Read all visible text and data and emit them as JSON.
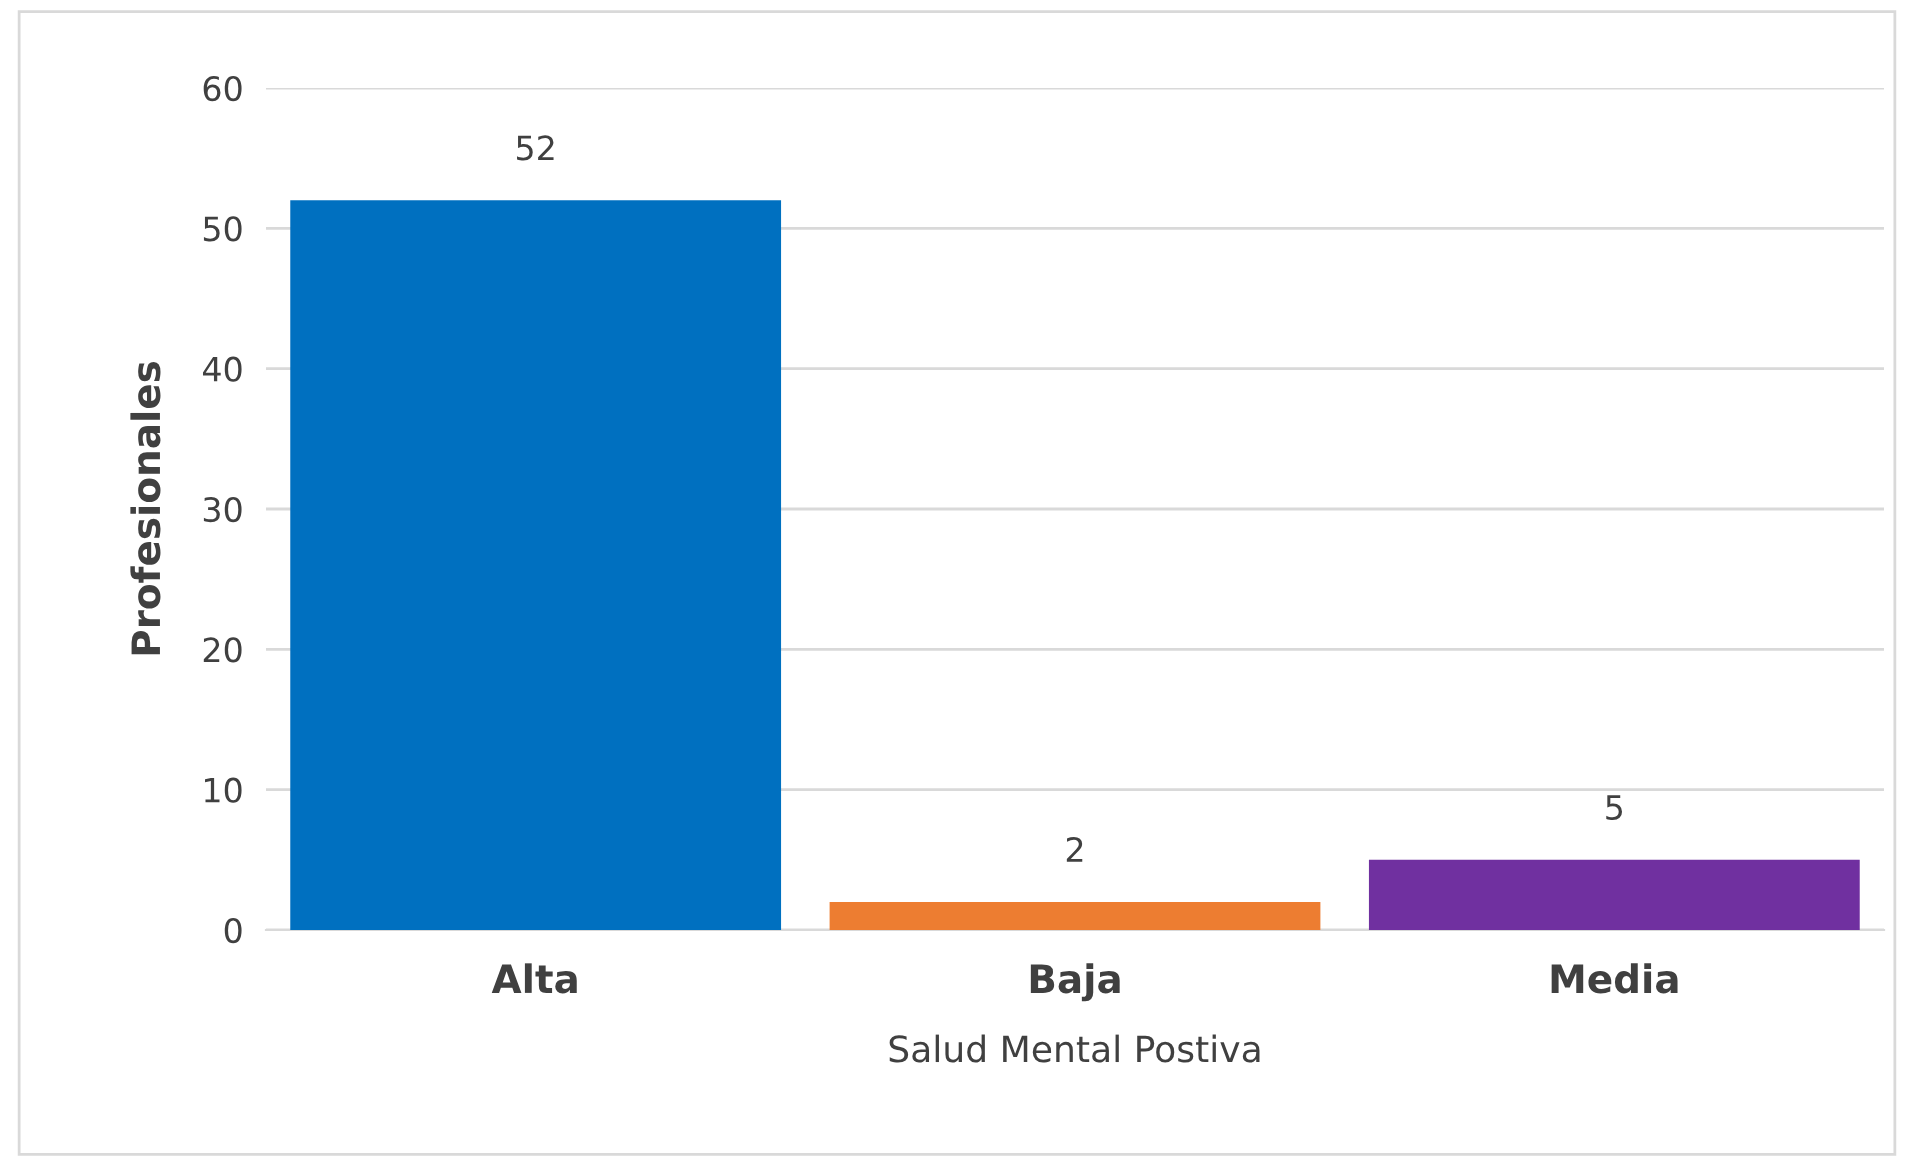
{
  "chart_data": {
    "type": "bar",
    "xlabel": "Salud Mental Postiva",
    "ylabel": "Profesionales",
    "categories": [
      "Alta",
      "Baja",
      "Media"
    ],
    "values": [
      52,
      2,
      5
    ],
    "colors": [
      "#0070c0",
      "#ed7d31",
      "#7030a0"
    ],
    "ylim": [
      0,
      60
    ],
    "yticks": [
      0,
      10,
      20,
      30,
      40,
      50,
      60
    ],
    "grid": "y",
    "data_labels": true
  }
}
